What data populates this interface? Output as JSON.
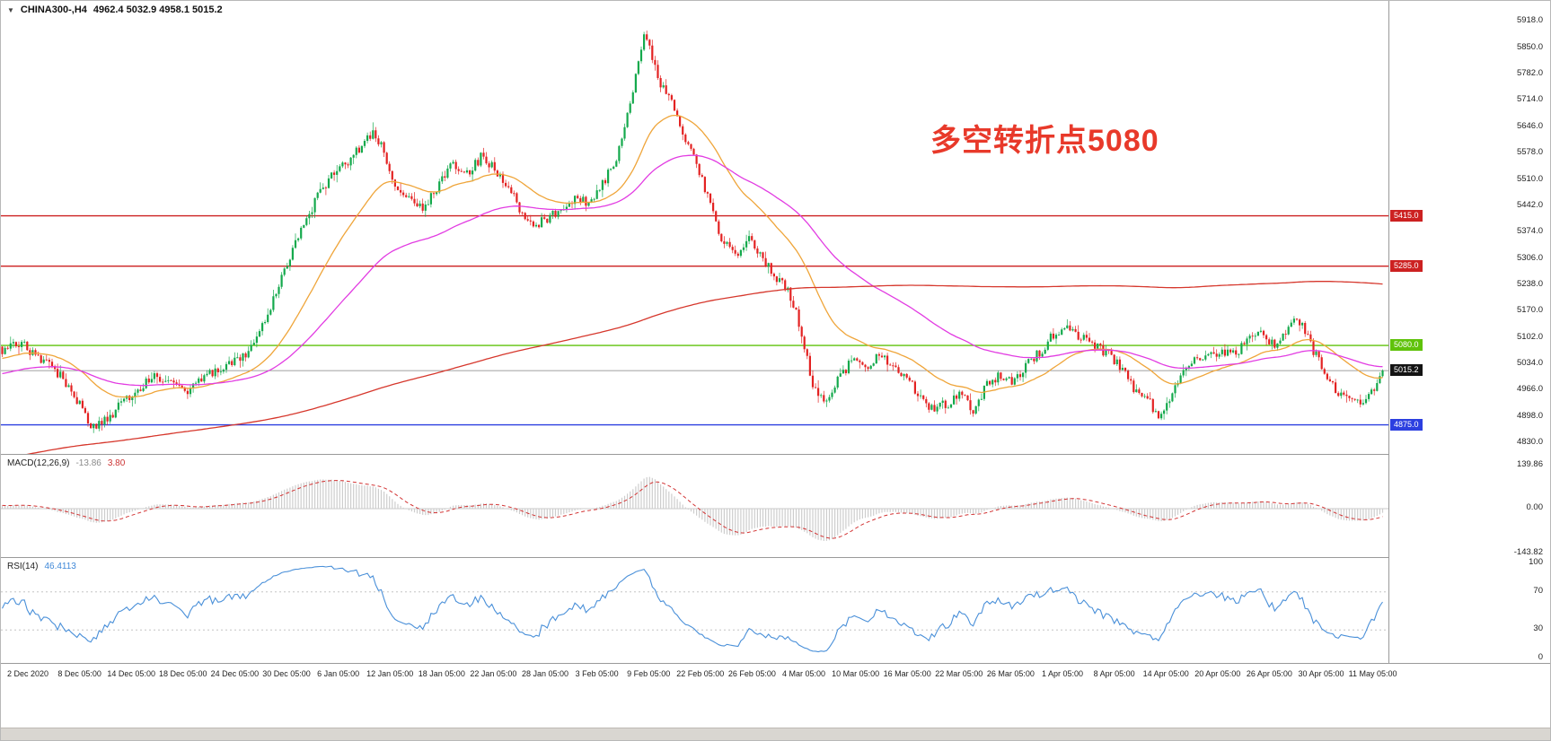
{
  "chart_data": [
    {
      "type": "candlestick",
      "header": {
        "icon": "▼",
        "symbol": "CHINA300-,H4",
        "ohlc": "4962.4 5032.9 4958.1 5015.2"
      },
      "annotation": {
        "text": "多空转折点5080",
        "color": "#e8392a"
      },
      "ylim": [
        4800,
        5970
      ],
      "grid": false,
      "n_candles": 500,
      "candle_volatility": 13,
      "y_axis_ticks": [
        "5918.0",
        "5850.0",
        "5782.0",
        "5714.0",
        "5646.0",
        "5578.0",
        "5510.0",
        "5442.0",
        "5374.0",
        "5306.0",
        "5238.0",
        "5170.0",
        "5102.0",
        "5034.0",
        "4966.0",
        "4898.0",
        "4830.0"
      ],
      "x_axis_labels": [
        "2 Dec 2020",
        "8 Dec 05:00",
        "14 Dec 05:00",
        "18 Dec 05:00",
        "24 Dec 05:00",
        "30 Dec 05:00",
        "6 Jan 05:00",
        "12 Jan 05:00",
        "18 Jan 05:00",
        "22 Jan 05:00",
        "28 Jan 05:00",
        "3 Feb 05:00",
        "9 Feb 05:00",
        "22 Feb 05:00",
        "26 Feb 05:00",
        "4 Mar 05:00",
        "10 Mar 05:00",
        "16 Mar 05:00",
        "22 Mar 05:00",
        "26 Mar 05:00",
        "1 Apr 05:00",
        "8 Apr 05:00",
        "14 Apr 05:00",
        "20 Apr 05:00",
        "26 Apr 05:00",
        "30 Apr 05:00",
        "11 May 05:00"
      ],
      "horizontal_lines": [
        {
          "price": 5415.0,
          "label": "5415.0",
          "color": "#cc2121"
        },
        {
          "price": 5285.0,
          "label": "5285.0",
          "color": "#cc2121"
        },
        {
          "price": 5080.0,
          "label": "5080.0",
          "color": "#5fc20a"
        },
        {
          "price": 4875.0,
          "label": "4875.0",
          "color": "#2c3fe0"
        }
      ],
      "current_price": {
        "value": 5015.2,
        "label": "5015.2",
        "line_color": "#808080",
        "tag_bg": "#141414"
      },
      "moving_averages": [
        {
          "name": "fast-ma",
          "type": "ema",
          "period": 34,
          "color": "#efa53a"
        },
        {
          "name": "medium-ma",
          "type": "ema",
          "period": 89,
          "color": "#e23ce2"
        },
        {
          "name": "slow-ma",
          "type": "sma",
          "period": 400,
          "color": "#d6372c"
        }
      ],
      "colors": {
        "up": "#14a94c",
        "down": "#e32222",
        "background": "#ffffff"
      },
      "price_waypoints": [
        [
          0.0,
          5070
        ],
        [
          0.012,
          5088
        ],
        [
          0.024,
          5058
        ],
        [
          0.036,
          5028
        ],
        [
          0.048,
          4975
        ],
        [
          0.058,
          4915
        ],
        [
          0.065,
          4862
        ],
        [
          0.072,
          4880
        ],
        [
          0.08,
          4906
        ],
        [
          0.09,
          4942
        ],
        [
          0.1,
          4975
        ],
        [
          0.112,
          5000
        ],
        [
          0.122,
          4978
        ],
        [
          0.132,
          4958
        ],
        [
          0.142,
          4985
        ],
        [
          0.152,
          5008
        ],
        [
          0.163,
          5030
        ],
        [
          0.172,
          5052
        ],
        [
          0.181,
          5072
        ],
        [
          0.19,
          5140
        ],
        [
          0.201,
          5250
        ],
        [
          0.213,
          5348
        ],
        [
          0.226,
          5448
        ],
        [
          0.239,
          5522
        ],
        [
          0.252,
          5558
        ],
        [
          0.261,
          5598
        ],
        [
          0.269,
          5628
        ],
        [
          0.276,
          5592
        ],
        [
          0.285,
          5472
        ],
        [
          0.296,
          5450
        ],
        [
          0.305,
          5435
        ],
        [
          0.317,
          5498
        ],
        [
          0.327,
          5553
        ],
        [
          0.337,
          5520
        ],
        [
          0.347,
          5568
        ],
        [
          0.356,
          5540
        ],
        [
          0.366,
          5490
        ],
        [
          0.376,
          5428
        ],
        [
          0.385,
          5386
        ],
        [
          0.395,
          5408
        ],
        [
          0.405,
          5436
        ],
        [
          0.415,
          5464
        ],
        [
          0.424,
          5446
        ],
        [
          0.434,
          5490
        ],
        [
          0.444,
          5556
        ],
        [
          0.454,
          5698
        ],
        [
          0.461,
          5812
        ],
        [
          0.466,
          5888
        ],
        [
          0.47,
          5838
        ],
        [
          0.475,
          5762
        ],
        [
          0.484,
          5726
        ],
        [
          0.493,
          5612
        ],
        [
          0.503,
          5552
        ],
        [
          0.512,
          5448
        ],
        [
          0.522,
          5352
        ],
        [
          0.531,
          5306
        ],
        [
          0.541,
          5360
        ],
        [
          0.551,
          5306
        ],
        [
          0.561,
          5256
        ],
        [
          0.57,
          5220
        ],
        [
          0.579,
          5118
        ],
        [
          0.587,
          4978
        ],
        [
          0.596,
          4940
        ],
        [
          0.606,
          4995
        ],
        [
          0.616,
          5045
        ],
        [
          0.626,
          5012
        ],
        [
          0.635,
          5055
        ],
        [
          0.645,
          5030
        ],
        [
          0.655,
          4995
        ],
        [
          0.664,
          4952
        ],
        [
          0.674,
          4916
        ],
        [
          0.684,
          4928
        ],
        [
          0.694,
          4960
        ],
        [
          0.703,
          4906
        ],
        [
          0.713,
          4974
        ],
        [
          0.723,
          5008
        ],
        [
          0.733,
          4986
        ],
        [
          0.742,
          5030
        ],
        [
          0.752,
          5064
        ],
        [
          0.762,
          5110
        ],
        [
          0.772,
          5134
        ],
        [
          0.781,
          5102
        ],
        [
          0.791,
          5080
        ],
        [
          0.801,
          5056
        ],
        [
          0.811,
          5022
        ],
        [
          0.82,
          4962
        ],
        [
          0.83,
          4950
        ],
        [
          0.837,
          4892
        ],
        [
          0.843,
          4924
        ],
        [
          0.853,
          4994
        ],
        [
          0.863,
          5040
        ],
        [
          0.872,
          5056
        ],
        [
          0.882,
          5064
        ],
        [
          0.892,
          5056
        ],
        [
          0.901,
          5088
        ],
        [
          0.911,
          5124
        ],
        [
          0.921,
          5082
        ],
        [
          0.93,
          5112
        ],
        [
          0.937,
          5148
        ],
        [
          0.943,
          5126
        ],
        [
          0.95,
          5066
        ],
        [
          0.957,
          5022
        ],
        [
          0.966,
          4964
        ],
        [
          0.973,
          4940
        ],
        [
          0.98,
          4928
        ],
        [
          0.99,
          4948
        ],
        [
          1.0,
          5015.2
        ]
      ]
    },
    {
      "type": "bar",
      "title": "MACD(12,26,9)",
      "value_main": "-13.86",
      "value_signal": "3.80",
      "params": [
        12,
        26,
        9
      ],
      "y_ticks": [
        "139.86",
        "0.00",
        "-143.82"
      ],
      "histogram_color": "#cdcdcd",
      "signal_color": "#d23333"
    },
    {
      "type": "line",
      "title": "RSI(14)",
      "value": "46.4113",
      "period": 14,
      "y_ticks": [
        "100",
        "70",
        "30",
        "0"
      ],
      "levels": [
        70,
        30
      ],
      "line_color": "#4a90d9"
    }
  ]
}
